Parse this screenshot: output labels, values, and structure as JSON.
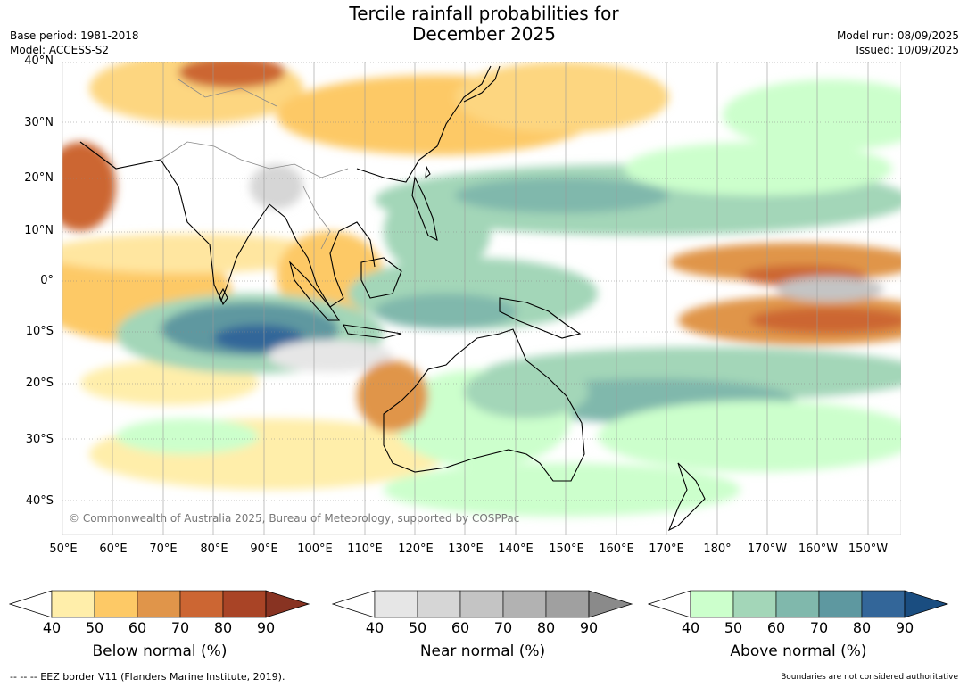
{
  "title_line1": "Tercile rainfall probabilities for",
  "title_line2": "December 2025",
  "base_period": "Base period: 1981-2018",
  "model": "Model: ACCESS-S2",
  "model_run": "Model run: 08/09/2025",
  "issued": "Issued: 10/09/2025",
  "lat_labels": [
    "40°N",
    "30°N",
    "20°N",
    "10°N",
    "0°",
    "10°S",
    "20°S",
    "30°S",
    "40°S"
  ],
  "lon_labels": [
    "50°E",
    "60°E",
    "70°E",
    "80°E",
    "90°E",
    "100°E",
    "110°E",
    "120°E",
    "130°E",
    "140°E",
    "150°E",
    "160°E",
    "170°E",
    "180°",
    "170°W",
    "160°W",
    "150°W"
  ],
  "copyright": "© Commonwealth of Australia 2025, Bureau of Meteorology, supported by COSPPac",
  "colorbars": [
    {
      "title": "Below normal (%)",
      "ticks": [
        "40",
        "50",
        "60",
        "70",
        "80",
        "90"
      ],
      "colors": [
        "#ffeeaa",
        "#fdc966",
        "#e0954a",
        "#cc6633",
        "#a94426",
        "#883322"
      ]
    },
    {
      "title": "Near normal (%)",
      "ticks": [
        "40",
        "50",
        "60",
        "70",
        "80",
        "90"
      ],
      "colors": [
        "#e6e6e6",
        "#d6d6d6",
        "#c4c4c4",
        "#b2b2b2",
        "#a0a0a0",
        "#8a8a8a"
      ]
    },
    {
      "title": "Above normal (%)",
      "ticks": [
        "40",
        "50",
        "60",
        "70",
        "80",
        "90"
      ],
      "colors": [
        "#ccffcc",
        "#a3d6b8",
        "#80b8ac",
        "#5e98a0",
        "#336699",
        "#1a4d80"
      ]
    }
  ],
  "footer_left": "--  --  -- EEZ border V11 (Flanders Marine Institute, 2019).",
  "footer_right": "Boundaries are not considered authoritative"
}
